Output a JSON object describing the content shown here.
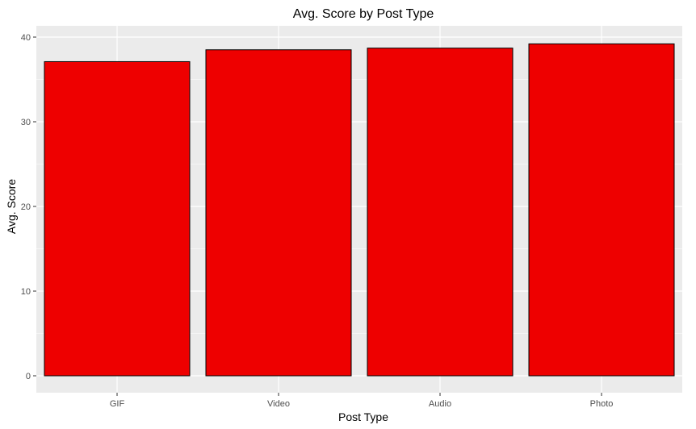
{
  "chart_data": {
    "type": "bar",
    "title": "Avg. Score by Post Type",
    "xlabel": "Post Type",
    "ylabel": "Avg. Score",
    "categories": [
      "GIF",
      "Video",
      "Audio",
      "Photo"
    ],
    "values": [
      37.1,
      38.5,
      38.7,
      39.2
    ],
    "ylim": [
      0,
      40
    ],
    "y_ticks": [
      0,
      10,
      20,
      30,
      40
    ],
    "grid": true,
    "legend": "none",
    "colors": {
      "bar_fill": "#EE0000",
      "bar_stroke": "#000000",
      "panel_bg": "#EBEBEB",
      "grid": "#FFFFFF",
      "tick_text": "#4D4D4D"
    }
  }
}
